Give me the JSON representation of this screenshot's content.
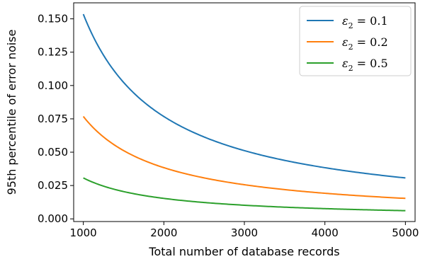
{
  "chart_data": {
    "type": "line",
    "title": "",
    "xlabel": "Total number of database records",
    "ylabel": "95th percentile of error noise",
    "xlim": [
      880,
      5120
    ],
    "ylim": [
      -0.002,
      0.162
    ],
    "x_ticks": [
      1000,
      2000,
      3000,
      4000,
      5000
    ],
    "x_tick_labels": [
      "1000",
      "2000",
      "3000",
      "4000",
      "5000"
    ],
    "y_ticks": [
      0.0,
      0.025,
      0.05,
      0.075,
      0.1,
      0.125,
      0.15
    ],
    "y_tick_labels": [
      "0.000",
      "0.025",
      "0.050",
      "0.075",
      "0.100",
      "0.125",
      "0.150"
    ],
    "grid": false,
    "legend_position": "top-right",
    "x": [
      1000,
      1250,
      1500,
      1750,
      2000,
      2500,
      3000,
      3500,
      4000,
      4500,
      5000
    ],
    "series": [
      {
        "name": "ε2 = 0.1",
        "legend": {
          "symbol": "ε",
          "sub": "2",
          "rest": " = 0.1"
        },
        "color": "#1f77b4",
        "values": [
          0.1535,
          0.1228,
          0.1023,
          0.0877,
          0.0768,
          0.0614,
          0.0512,
          0.0439,
          0.0384,
          0.0341,
          0.0307
        ]
      },
      {
        "name": "ε2 = 0.2",
        "legend": {
          "symbol": "ε",
          "sub": "2",
          "rest": " = 0.2"
        },
        "color": "#ff7f0e",
        "values": [
          0.0768,
          0.0614,
          0.0512,
          0.0439,
          0.0384,
          0.0307,
          0.0256,
          0.0219,
          0.0192,
          0.0171,
          0.0154
        ]
      },
      {
        "name": "ε2 = 0.5",
        "legend": {
          "symbol": "ε",
          "sub": "2",
          "rest": " = 0.5"
        },
        "color": "#2ca02c",
        "values": [
          0.0307,
          0.0246,
          0.0205,
          0.0175,
          0.0154,
          0.0123,
          0.0102,
          0.0088,
          0.0077,
          0.0068,
          0.0061
        ]
      }
    ]
  }
}
